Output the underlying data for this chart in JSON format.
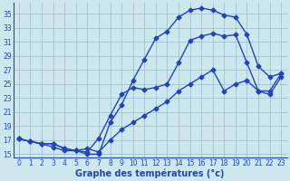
{
  "xlabel": "Graphe des températures (°c)",
  "bg_color": "#cce8ee",
  "grid_color": "#99bbcc",
  "line_color": "#2244bb",
  "marker": "D",
  "markersize": 2.5,
  "linewidth": 1.0,
  "xlim": [
    -0.5,
    23.5
  ],
  "ylim": [
    14.5,
    36.5
  ],
  "yticks": [
    15,
    17,
    19,
    21,
    23,
    25,
    27,
    29,
    31,
    33,
    35
  ],
  "xticks": [
    0,
    1,
    2,
    3,
    4,
    5,
    6,
    7,
    8,
    9,
    10,
    11,
    12,
    13,
    14,
    15,
    16,
    17,
    18,
    19,
    20,
    21,
    22,
    23
  ],
  "curve1_x": [
    0,
    1,
    2,
    3,
    4,
    5,
    6,
    7,
    8,
    9,
    10,
    11,
    12,
    13,
    14,
    15,
    16,
    17,
    18,
    19,
    20,
    21,
    22,
    23
  ],
  "curve1_y": [
    17.2,
    16.8,
    16.5,
    16.5,
    15.8,
    15.5,
    15.0,
    15.0,
    19.5,
    22.0,
    25.5,
    28.5,
    31.5,
    32.5,
    34.5,
    35.5,
    35.8,
    35.5,
    34.8,
    34.5,
    32.0,
    27.5,
    26.0,
    26.5
  ],
  "curve2_x": [
    0,
    1,
    2,
    3,
    4,
    5,
    6,
    7,
    8,
    9,
    10,
    11,
    12,
    13,
    14,
    15,
    16,
    17,
    18,
    19,
    20,
    21,
    22,
    23
  ],
  "curve2_y": [
    17.2,
    16.8,
    16.5,
    16.5,
    15.8,
    15.5,
    15.3,
    17.3,
    20.5,
    23.5,
    24.5,
    24.2,
    24.5,
    25.0,
    28.0,
    31.2,
    31.8,
    32.2,
    31.8,
    32.0,
    28.0,
    24.0,
    23.5,
    26.0
  ],
  "curve3_x": [
    0,
    1,
    2,
    3,
    4,
    5,
    6,
    7,
    8,
    9,
    10,
    11,
    12,
    13,
    14,
    15,
    16,
    17,
    18,
    19,
    20,
    21,
    22,
    23
  ],
  "curve3_y": [
    17.2,
    16.8,
    16.5,
    16.0,
    15.5,
    15.5,
    15.8,
    15.3,
    17.0,
    18.5,
    19.5,
    20.5,
    21.5,
    22.5,
    24.0,
    25.0,
    26.0,
    27.0,
    24.0,
    25.0,
    25.5,
    24.0,
    24.0,
    26.5
  ],
  "xlabel_fontsize": 7,
  "tick_fontsize": 5.5
}
